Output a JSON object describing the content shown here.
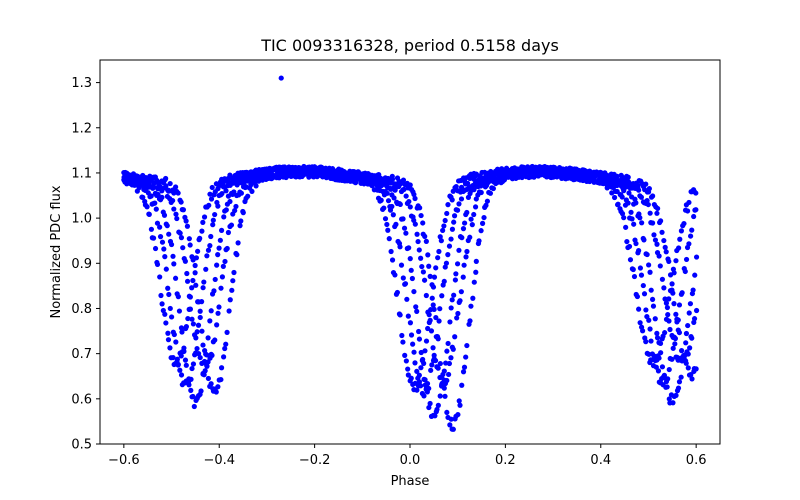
{
  "chart_data": {
    "type": "scatter",
    "title": "TIC 0093316328, period 0.5158 days",
    "xlabel": "Phase",
    "ylabel": "Normalized PDC flux",
    "xlim": [
      -0.65,
      0.65
    ],
    "ylim": [
      0.5,
      1.35
    ],
    "xticks": [
      -0.6,
      -0.4,
      -0.2,
      0.0,
      0.2,
      0.4,
      0.6
    ],
    "xtick_labels": [
      "−0.6",
      "−0.4",
      "−0.2",
      "0.0",
      "0.2",
      "0.4",
      "0.6"
    ],
    "yticks": [
      0.5,
      0.6,
      0.7,
      0.8,
      0.9,
      1.0,
      1.1,
      1.2,
      1.3
    ],
    "ytick_labels": [
      "0.5",
      "0.6",
      "0.7",
      "0.8",
      "0.9",
      "1.0",
      "1.1",
      "1.2",
      "1.3"
    ],
    "grid": false,
    "marker_color": "#0000ff",
    "outliers": [
      {
        "x": -0.27,
        "y": 1.31
      }
    ],
    "curve_model": {
      "phase_range": [
        -0.6,
        0.6
      ],
      "base_flux": 1.08,
      "eclipse_widths": [
        0.032,
        0.034,
        0.036
      ],
      "eclipse_cycles": [
        {
          "centers": [
            -0.45,
            0.05,
            0.55
          ],
          "depths": [
            0.49,
            0.51,
            0.48
          ]
        },
        {
          "centers": [
            -0.47,
            0.03,
            0.53
          ],
          "depths": [
            0.45,
            0.46,
            0.44
          ]
        },
        {
          "centers": [
            -0.41,
            0.09,
            0.59
          ],
          "depths": [
            0.47,
            0.54,
            0.43
          ]
        },
        {
          "centers": [
            -0.49,
            0.01,
            0.51
          ],
          "depths": [
            0.4,
            0.45,
            0.4
          ]
        },
        {
          "centers": [
            -0.43,
            0.07,
            0.57
          ],
          "depths": [
            0.42,
            0.44,
            0.4
          ]
        }
      ]
    }
  }
}
